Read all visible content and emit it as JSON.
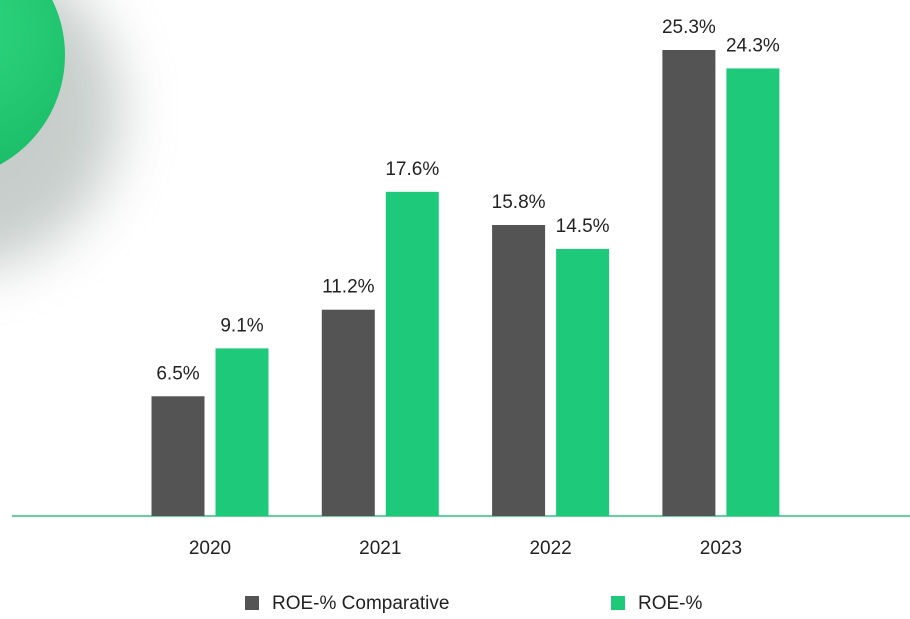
{
  "chart_data": {
    "type": "bar",
    "categories": [
      "2020",
      "2021",
      "2022",
      "2023"
    ],
    "series": [
      {
        "name": "ROE-% Comparative",
        "color": "#545454",
        "values": [
          6.5,
          11.2,
          15.8,
          25.3
        ],
        "value_labels": [
          "6.5%",
          "11.2%",
          "15.8%",
          "25.3%"
        ]
      },
      {
        "name": "ROE-%",
        "color": "#1fc97a",
        "values": [
          9.1,
          17.6,
          14.5,
          24.3
        ],
        "value_labels": [
          "9.1%",
          "17.6%",
          "14.5%",
          "24.3%"
        ]
      }
    ],
    "legend": "bottom"
  }
}
